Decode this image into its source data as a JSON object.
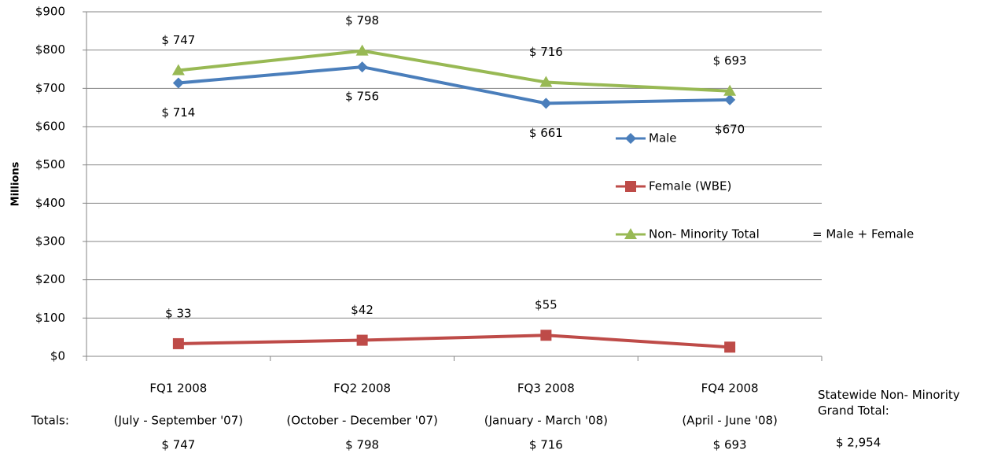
{
  "chart_data": {
    "type": "line",
    "y_axis_label": "Millions",
    "categories": [
      "FQ1 2008",
      "FQ2 2008",
      "FQ3 2008",
      "FQ4 2008"
    ],
    "periods": [
      "(July - September '07)",
      "(October - December '07)",
      "(January - March '08)",
      "(April - June '08)"
    ],
    "series": [
      {
        "name": "Male",
        "color": "#4a7ebb",
        "marker": "diamond",
        "label_side": "below",
        "values": [
          714,
          756,
          661,
          670
        ],
        "value_labels": [
          "$ 714",
          "$ 756",
          "$ 661",
          "$670"
        ]
      },
      {
        "name": "Female (WBE)",
        "color": "#be4b48",
        "marker": "square",
        "label_side": "above",
        "values": [
          33,
          42,
          55,
          24
        ],
        "value_labels": [
          "$ 33",
          "$42",
          "$55",
          null
        ]
      },
      {
        "name": "Non- Minority Total",
        "color": "#98b954",
        "marker": "triangle",
        "label_side": "above",
        "values": [
          747,
          798,
          716,
          693
        ],
        "value_labels": [
          "$ 747",
          "$ 798",
          "$ 716",
          "$ 693"
        ]
      }
    ],
    "legend_note": "= Male + Female",
    "ylim": [
      0,
      900
    ],
    "yticks": [
      {
        "value": 0,
        "label": "$0"
      },
      {
        "value": 100,
        "label": "$100"
      },
      {
        "value": 200,
        "label": "$200"
      },
      {
        "value": 300,
        "label": "$300"
      },
      {
        "value": 400,
        "label": "$400"
      },
      {
        "value": 500,
        "label": "$500"
      },
      {
        "value": 600,
        "label": "$600"
      },
      {
        "value": 700,
        "label": "$700"
      },
      {
        "value": 800,
        "label": "$800"
      },
      {
        "value": 900,
        "label": "$900"
      }
    ],
    "grid": true,
    "totals_title": "Totals:",
    "totals": [
      747,
      798,
      716,
      693
    ],
    "totals_labels": [
      "$ 747",
      "$ 798",
      "$ 716",
      "$ 693"
    ],
    "grand_total_title": "Statewide Non- Minority Grand Total:",
    "grand_total": 2954,
    "grand_total_label": "$ 2,954"
  }
}
